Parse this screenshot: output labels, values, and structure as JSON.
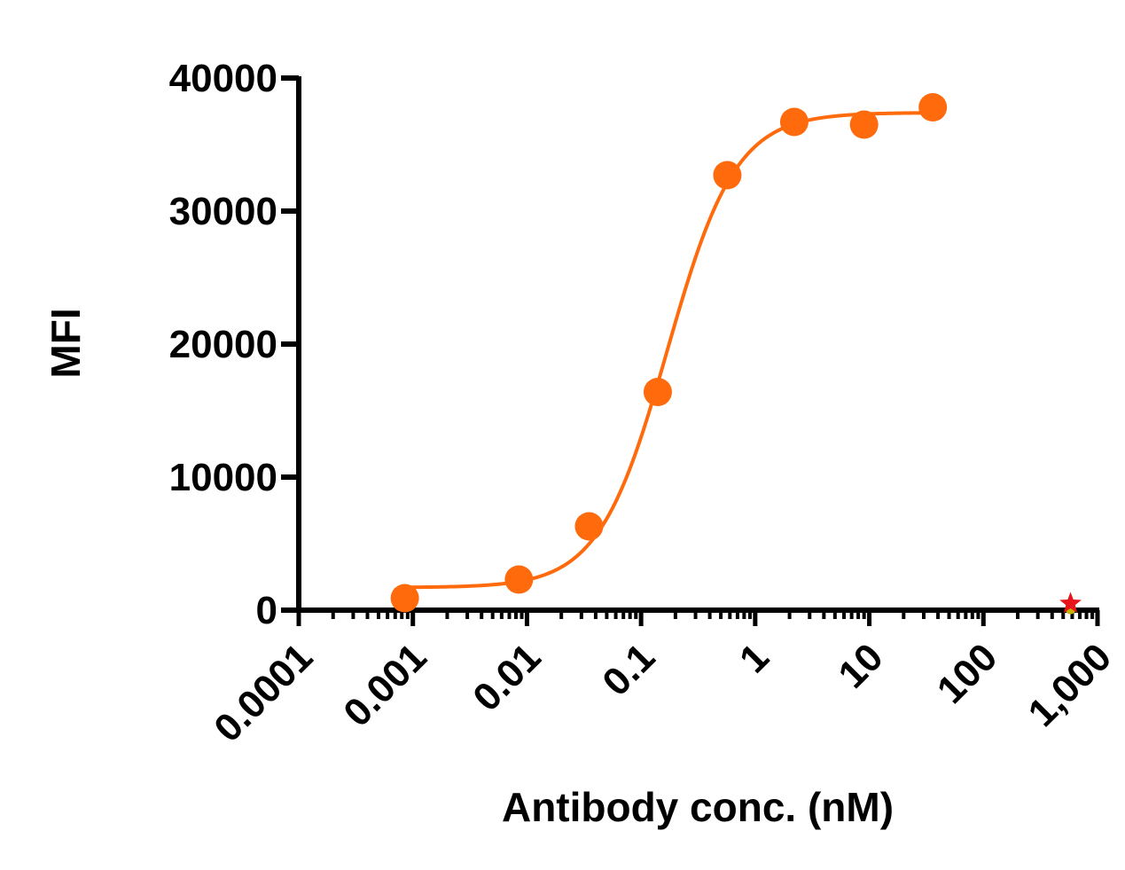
{
  "chart_data": {
    "type": "scatter",
    "title": "",
    "xlabel": "Antibody conc. (nM)",
    "ylabel": "MFI",
    "x_scale": "log",
    "xlim": [
      0.0001,
      1000
    ],
    "ylim": [
      0,
      40000
    ],
    "x_tick_labels": [
      "0.0001",
      "0.001",
      "0.01",
      "0.1",
      "1",
      "10",
      "100",
      "1,000"
    ],
    "y_tick_labels": [
      "0",
      "10000",
      "20000",
      "30000",
      "40000"
    ],
    "y_tick_values": [
      0,
      10000,
      20000,
      30000,
      40000
    ],
    "series": [
      {
        "color": "#FF6A0D",
        "marker": "circle",
        "points": [
          {
            "x": 0.00085,
            "y": 900
          },
          {
            "x": 0.0085,
            "y": 2300
          },
          {
            "x": 0.035,
            "y": 6300
          },
          {
            "x": 0.14,
            "y": 16400
          },
          {
            "x": 0.57,
            "y": 32700
          },
          {
            "x": 2.2,
            "y": 36700
          },
          {
            "x": 9.0,
            "y": 36500
          },
          {
            "x": 36,
            "y": 37800
          }
        ],
        "fit_curve": {
          "bottom": 1700,
          "top": 37400,
          "ec50": 0.17,
          "hill": 1.45
        }
      }
    ],
    "annotation": {
      "marker": "star",
      "x": 580,
      "y": 500,
      "color": "#E8141C",
      "secondary_color": "#C8B400"
    },
    "grid": false,
    "legend": "none"
  }
}
